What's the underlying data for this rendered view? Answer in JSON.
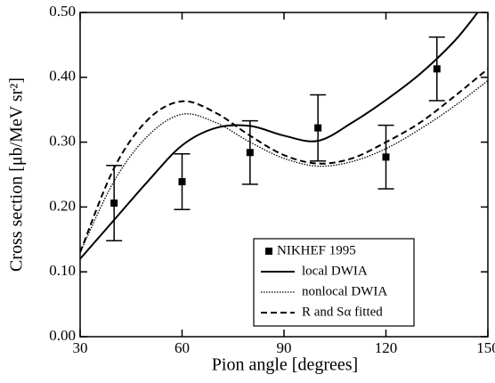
{
  "chart_data": {
    "type": "line",
    "xlabel": "Pion angle [degrees]",
    "ylabel": "Cross section [μb/MeV sr²]",
    "xlim": [
      30,
      150
    ],
    "xticks": [
      30,
      60,
      90,
      120,
      150
    ],
    "ylim": [
      0,
      0.5
    ],
    "yticks": [
      {
        "value": 0,
        "label": "0.00"
      },
      {
        "value": 0.1,
        "label": "0.10"
      },
      {
        "value": 0.2,
        "label": "0.20"
      },
      {
        "value": 0.3,
        "label": "0.30"
      },
      {
        "value": 0.4,
        "label": "0.40"
      },
      {
        "value": 0.5,
        "label": "0.50"
      }
    ],
    "legend": "lower right",
    "series": [
      {
        "name": "NIKHEF 1995",
        "type": "scatter",
        "color": "#000000",
        "x": [
          40,
          60,
          80,
          100,
          120,
          135
        ],
        "values": [
          0.206,
          0.239,
          0.284,
          0.322,
          0.277,
          0.413
        ],
        "errors": [
          0.058,
          0.043,
          0.049,
          0.051,
          0.049,
          0.049
        ]
      },
      {
        "name": "local DWIA",
        "type": "line",
        "color": "#000000",
        "dash": "solid",
        "x": [
          30,
          40,
          50,
          60,
          70,
          80,
          90,
          100,
          110,
          120,
          130,
          140,
          147
        ],
        "values": [
          0.12,
          0.18,
          0.24,
          0.295,
          0.322,
          0.325,
          0.31,
          0.302,
          0.33,
          0.365,
          0.405,
          0.455,
          0.5
        ]
      },
      {
        "name": "nonlocal DWIA",
        "type": "line",
        "color": "#000000",
        "dash": "dotted",
        "x": [
          30,
          40,
          50,
          60,
          70,
          80,
          90,
          100,
          110,
          120,
          130,
          140,
          150
        ],
        "values": [
          0.13,
          0.24,
          0.31,
          0.343,
          0.33,
          0.3,
          0.275,
          0.263,
          0.27,
          0.29,
          0.32,
          0.355,
          0.395
        ]
      },
      {
        "name": "R and Sα fitted",
        "type": "line",
        "color": "#000000",
        "dash": "dashed",
        "x": [
          30,
          40,
          50,
          60,
          70,
          80,
          90,
          100,
          110,
          120,
          130,
          140,
          150
        ],
        "values": [
          0.13,
          0.26,
          0.335,
          0.363,
          0.345,
          0.31,
          0.28,
          0.267,
          0.275,
          0.3,
          0.33,
          0.37,
          0.413
        ]
      }
    ]
  }
}
